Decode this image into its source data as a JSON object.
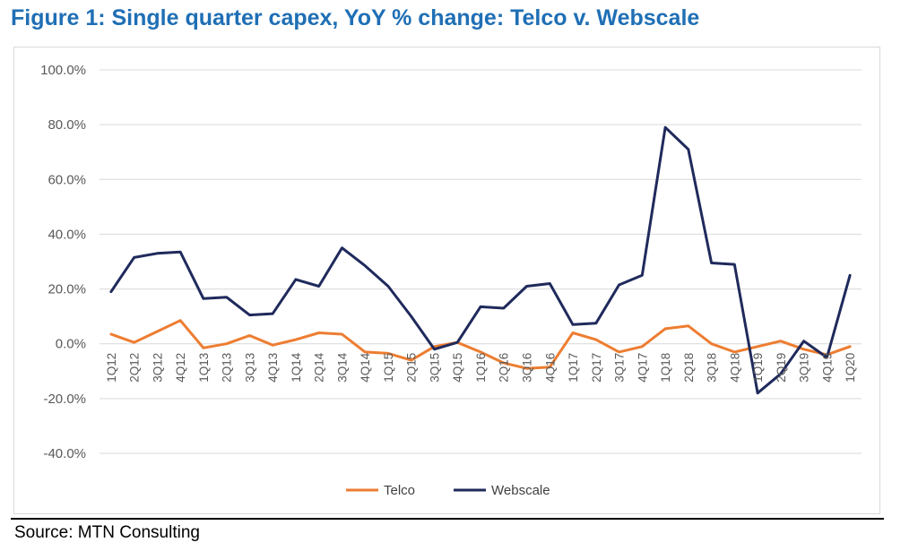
{
  "figure": {
    "title": "Figure 1: Single quarter capex, YoY % change: Telco v. Webscale",
    "source": "Source: MTN Consulting"
  },
  "colors": {
    "title": "#1f6fb5",
    "telco": "#ed7d31",
    "webscale": "#1f2a5c",
    "grid": "#d9d9d9"
  },
  "chart_data": {
    "type": "line",
    "title": "",
    "xlabel": "",
    "ylabel": "",
    "ylim": [
      -40,
      100
    ],
    "yticks": [
      100,
      80,
      60,
      40,
      20,
      0,
      -20,
      -40
    ],
    "ytick_labels": [
      "100.0%",
      "80.0%",
      "60.0%",
      "40.0%",
      "20.0%",
      "0.0%",
      "-20.0%",
      "-40.0%"
    ],
    "grid": true,
    "legend_position": "bottom",
    "categories": [
      "1Q12",
      "2Q12",
      "3Q12",
      "4Q12",
      "1Q13",
      "2Q13",
      "3Q13",
      "4Q13",
      "1Q14",
      "2Q14",
      "3Q14",
      "4Q14",
      "1Q15",
      "2Q15",
      "3Q15",
      "4Q15",
      "1Q16",
      "2Q16",
      "3Q16",
      "4Q16",
      "1Q17",
      "2Q17",
      "3Q17",
      "4Q17",
      "1Q18",
      "2Q18",
      "3Q18",
      "4Q18",
      "1Q19",
      "2Q19",
      "3Q19",
      "4Q19",
      "1Q20"
    ],
    "series": [
      {
        "name": "Telco",
        "values": [
          3.5,
          0.5,
          4.5,
          8.5,
          -1.5,
          0,
          3,
          -0.5,
          1.5,
          4,
          3.5,
          -3,
          -3.5,
          -6,
          -1,
          0.5,
          -3,
          -7,
          -9,
          -8.5,
          4,
          1.5,
          -3,
          -1,
          5.5,
          6.5,
          0,
          -3,
          -1,
          1,
          -2,
          -4,
          -1
        ]
      },
      {
        "name": "Webscale",
        "values": [
          19,
          31.5,
          33,
          33.5,
          16.5,
          17,
          10.5,
          11,
          23.5,
          21,
          35,
          28.5,
          21,
          10,
          -2,
          0.5,
          13.5,
          13,
          21,
          22,
          7,
          7.5,
          21.5,
          25,
          79,
          71,
          29.5,
          29,
          -18,
          -11,
          1,
          -5,
          25
        ]
      }
    ]
  }
}
